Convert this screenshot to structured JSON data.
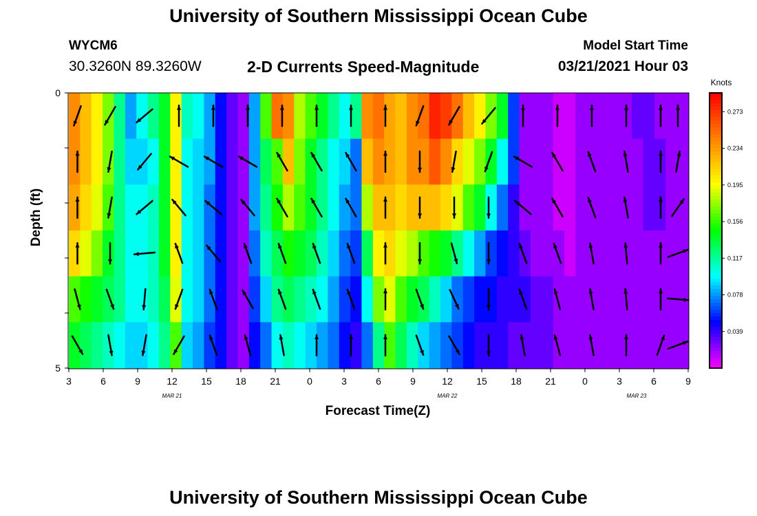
{
  "header": {
    "title": "University of Southern Mississippi Ocean Cube",
    "station_id": "WYCM6",
    "coords": "30.3260N 89.3260W",
    "chart_title": "2-D Currents Speed-Magnitude",
    "model_label": "Model Start Time",
    "model_time": "03/21/2021 Hour 03"
  },
  "footer": {
    "title": "University of Southern Mississippi Ocean Cube"
  },
  "chart_data": {
    "type": "heatmap",
    "xlabel": "Forecast Time(Z)",
    "ylabel": "Depth (ft)",
    "x_tick_labels": [
      "3",
      "6",
      "9",
      "12",
      "15",
      "18",
      "21",
      "0",
      "3",
      "6",
      "9",
      "12",
      "15",
      "18",
      "21",
      "0",
      "3",
      "6",
      "9"
    ],
    "day_labels": [
      {
        "label": "MAR 21",
        "tick_index": 3
      },
      {
        "label": "MAR 22",
        "tick_index": 11
      },
      {
        "label": "MAR 23",
        "tick_index": 16.5
      }
    ],
    "y_tick_labels": [
      "0",
      "5"
    ],
    "ylim": [
      0,
      5
    ],
    "colorbar": {
      "unit": "Knots",
      "labels": [
        "0.273",
        "0.234",
        "0.195",
        "0.156",
        "0.117",
        "0.078",
        "0.039"
      ],
      "levels": [
        0.273,
        0.234,
        0.195,
        0.156,
        0.117,
        0.078,
        0.039
      ],
      "range": [
        0.0,
        0.293
      ],
      "colors": [
        "#ff00ff",
        "#8000ff",
        "#0000ff",
        "#0080ff",
        "#00ffff",
        "#00ff80",
        "#00ff00",
        "#80ff00",
        "#ffff00",
        "#ffc000",
        "#ff8000",
        "#ff4000",
        "#ff0000"
      ]
    },
    "time_steps_hours": 55,
    "depth_layers": 6,
    "speed_rows": [
      [
        0.24,
        0.22,
        0.2,
        0.17,
        0.12,
        0.08,
        0.1,
        0.12,
        0.14,
        0.2,
        0.11,
        0.1,
        0.08,
        0.05,
        0.03,
        0.02,
        0.08,
        0.16,
        0.25,
        0.24,
        0.18,
        0.16,
        0.14,
        0.12,
        0.1,
        0.12,
        0.24,
        0.25,
        0.23,
        0.22,
        0.24,
        0.25,
        0.28,
        0.27,
        0.25,
        0.22,
        0.2,
        0.17,
        0.14,
        0.06,
        0.02,
        0.02,
        0.02,
        0.01,
        0.01,
        0.02,
        0.02,
        0.02,
        0.02,
        0.02,
        0.03,
        0.03,
        0.02,
        0.02,
        0.02
      ],
      [
        0.24,
        0.22,
        0.2,
        0.17,
        0.12,
        0.09,
        0.09,
        0.1,
        0.14,
        0.2,
        0.1,
        0.09,
        0.08,
        0.05,
        0.03,
        0.02,
        0.08,
        0.13,
        0.16,
        0.22,
        0.17,
        0.14,
        0.12,
        0.1,
        0.09,
        0.07,
        0.22,
        0.24,
        0.23,
        0.22,
        0.24,
        0.24,
        0.26,
        0.24,
        0.21,
        0.19,
        0.17,
        0.14,
        0.1,
        0.06,
        0.02,
        0.02,
        0.02,
        0.01,
        0.01,
        0.02,
        0.02,
        0.02,
        0.02,
        0.02,
        0.02,
        0.03,
        0.03,
        0.02,
        0.02
      ],
      [
        0.23,
        0.21,
        0.19,
        0.16,
        0.12,
        0.1,
        0.1,
        0.11,
        0.14,
        0.2,
        0.1,
        0.09,
        0.07,
        0.05,
        0.03,
        0.02,
        0.08,
        0.12,
        0.15,
        0.18,
        0.16,
        0.14,
        0.12,
        0.1,
        0.08,
        0.07,
        0.18,
        0.22,
        0.22,
        0.21,
        0.22,
        0.22,
        0.22,
        0.21,
        0.19,
        0.16,
        0.14,
        0.1,
        0.07,
        0.04,
        0.02,
        0.02,
        0.02,
        0.01,
        0.01,
        0.02,
        0.02,
        0.02,
        0.02,
        0.02,
        0.02,
        0.03,
        0.03,
        0.02,
        0.02
      ],
      [
        0.21,
        0.19,
        0.17,
        0.14,
        0.12,
        0.1,
        0.1,
        0.11,
        0.14,
        0.2,
        0.1,
        0.09,
        0.07,
        0.05,
        0.03,
        0.02,
        0.07,
        0.11,
        0.13,
        0.15,
        0.14,
        0.13,
        0.11,
        0.09,
        0.07,
        0.06,
        0.13,
        0.2,
        0.21,
        0.19,
        0.18,
        0.16,
        0.15,
        0.14,
        0.12,
        0.1,
        0.08,
        0.06,
        0.05,
        0.04,
        0.03,
        0.02,
        0.02,
        0.02,
        0.01,
        0.02,
        0.02,
        0.02,
        0.02,
        0.02,
        0.02,
        0.02,
        0.02,
        0.02,
        0.02
      ],
      [
        0.16,
        0.15,
        0.14,
        0.13,
        0.12,
        0.1,
        0.1,
        0.11,
        0.13,
        0.19,
        0.1,
        0.09,
        0.07,
        0.05,
        0.03,
        0.02,
        0.06,
        0.09,
        0.12,
        0.13,
        0.12,
        0.11,
        0.1,
        0.08,
        0.06,
        0.05,
        0.1,
        0.17,
        0.19,
        0.16,
        0.14,
        0.13,
        0.11,
        0.09,
        0.07,
        0.06,
        0.05,
        0.05,
        0.04,
        0.04,
        0.04,
        0.03,
        0.03,
        0.02,
        0.02,
        0.02,
        0.02,
        0.02,
        0.02,
        0.02,
        0.02,
        0.02,
        0.02,
        0.02,
        0.02
      ],
      [
        0.14,
        0.13,
        0.12,
        0.11,
        0.1,
        0.09,
        0.09,
        0.1,
        0.12,
        0.16,
        0.09,
        0.08,
        0.06,
        0.05,
        0.03,
        0.02,
        0.05,
        0.07,
        0.1,
        0.11,
        0.1,
        0.09,
        0.08,
        0.07,
        0.05,
        0.04,
        0.07,
        0.12,
        0.16,
        0.13,
        0.11,
        0.09,
        0.08,
        0.07,
        0.06,
        0.05,
        0.04,
        0.04,
        0.04,
        0.03,
        0.03,
        0.03,
        0.03,
        0.02,
        0.02,
        0.02,
        0.02,
        0.02,
        0.02,
        0.02,
        0.02,
        0.02,
        0.02,
        0.02,
        0.02
      ]
    ],
    "vector_columns_tick_units": [
      0.25,
      1.2,
      2.2,
      3.2,
      4.2,
      5.2,
      6.2,
      7.2,
      8.2,
      9.2,
      10.2,
      11.2,
      12.2,
      13.2,
      14.2,
      15.2,
      16.2,
      17.2,
      17.7
    ],
    "vector_directions_deg": [
      [
        200,
        210,
        230,
        0,
        0,
        0,
        0,
        0,
        0,
        0,
        200,
        210,
        220,
        0,
        0,
        0,
        0,
        0,
        0
      ],
      [
        0,
        190,
        220,
        300,
        300,
        300,
        330,
        330,
        330,
        0,
        180,
        190,
        200,
        300,
        330,
        340,
        350,
        0,
        10
      ],
      [
        0,
        190,
        230,
        320,
        310,
        320,
        330,
        330,
        330,
        0,
        180,
        180,
        180,
        310,
        330,
        340,
        350,
        0,
        35
      ],
      [
        0,
        180,
        265,
        340,
        320,
        340,
        340,
        340,
        340,
        0,
        180,
        165,
        180,
        340,
        340,
        350,
        355,
        0,
        70
      ],
      [
        165,
        160,
        185,
        200,
        340,
        330,
        340,
        340,
        340,
        0,
        160,
        155,
        180,
        340,
        345,
        350,
        355,
        0,
        95
      ],
      [
        150,
        170,
        190,
        210,
        340,
        345,
        350,
        0,
        0,
        0,
        160,
        150,
        180,
        350,
        345,
        350,
        0,
        20,
        70
      ]
    ]
  }
}
